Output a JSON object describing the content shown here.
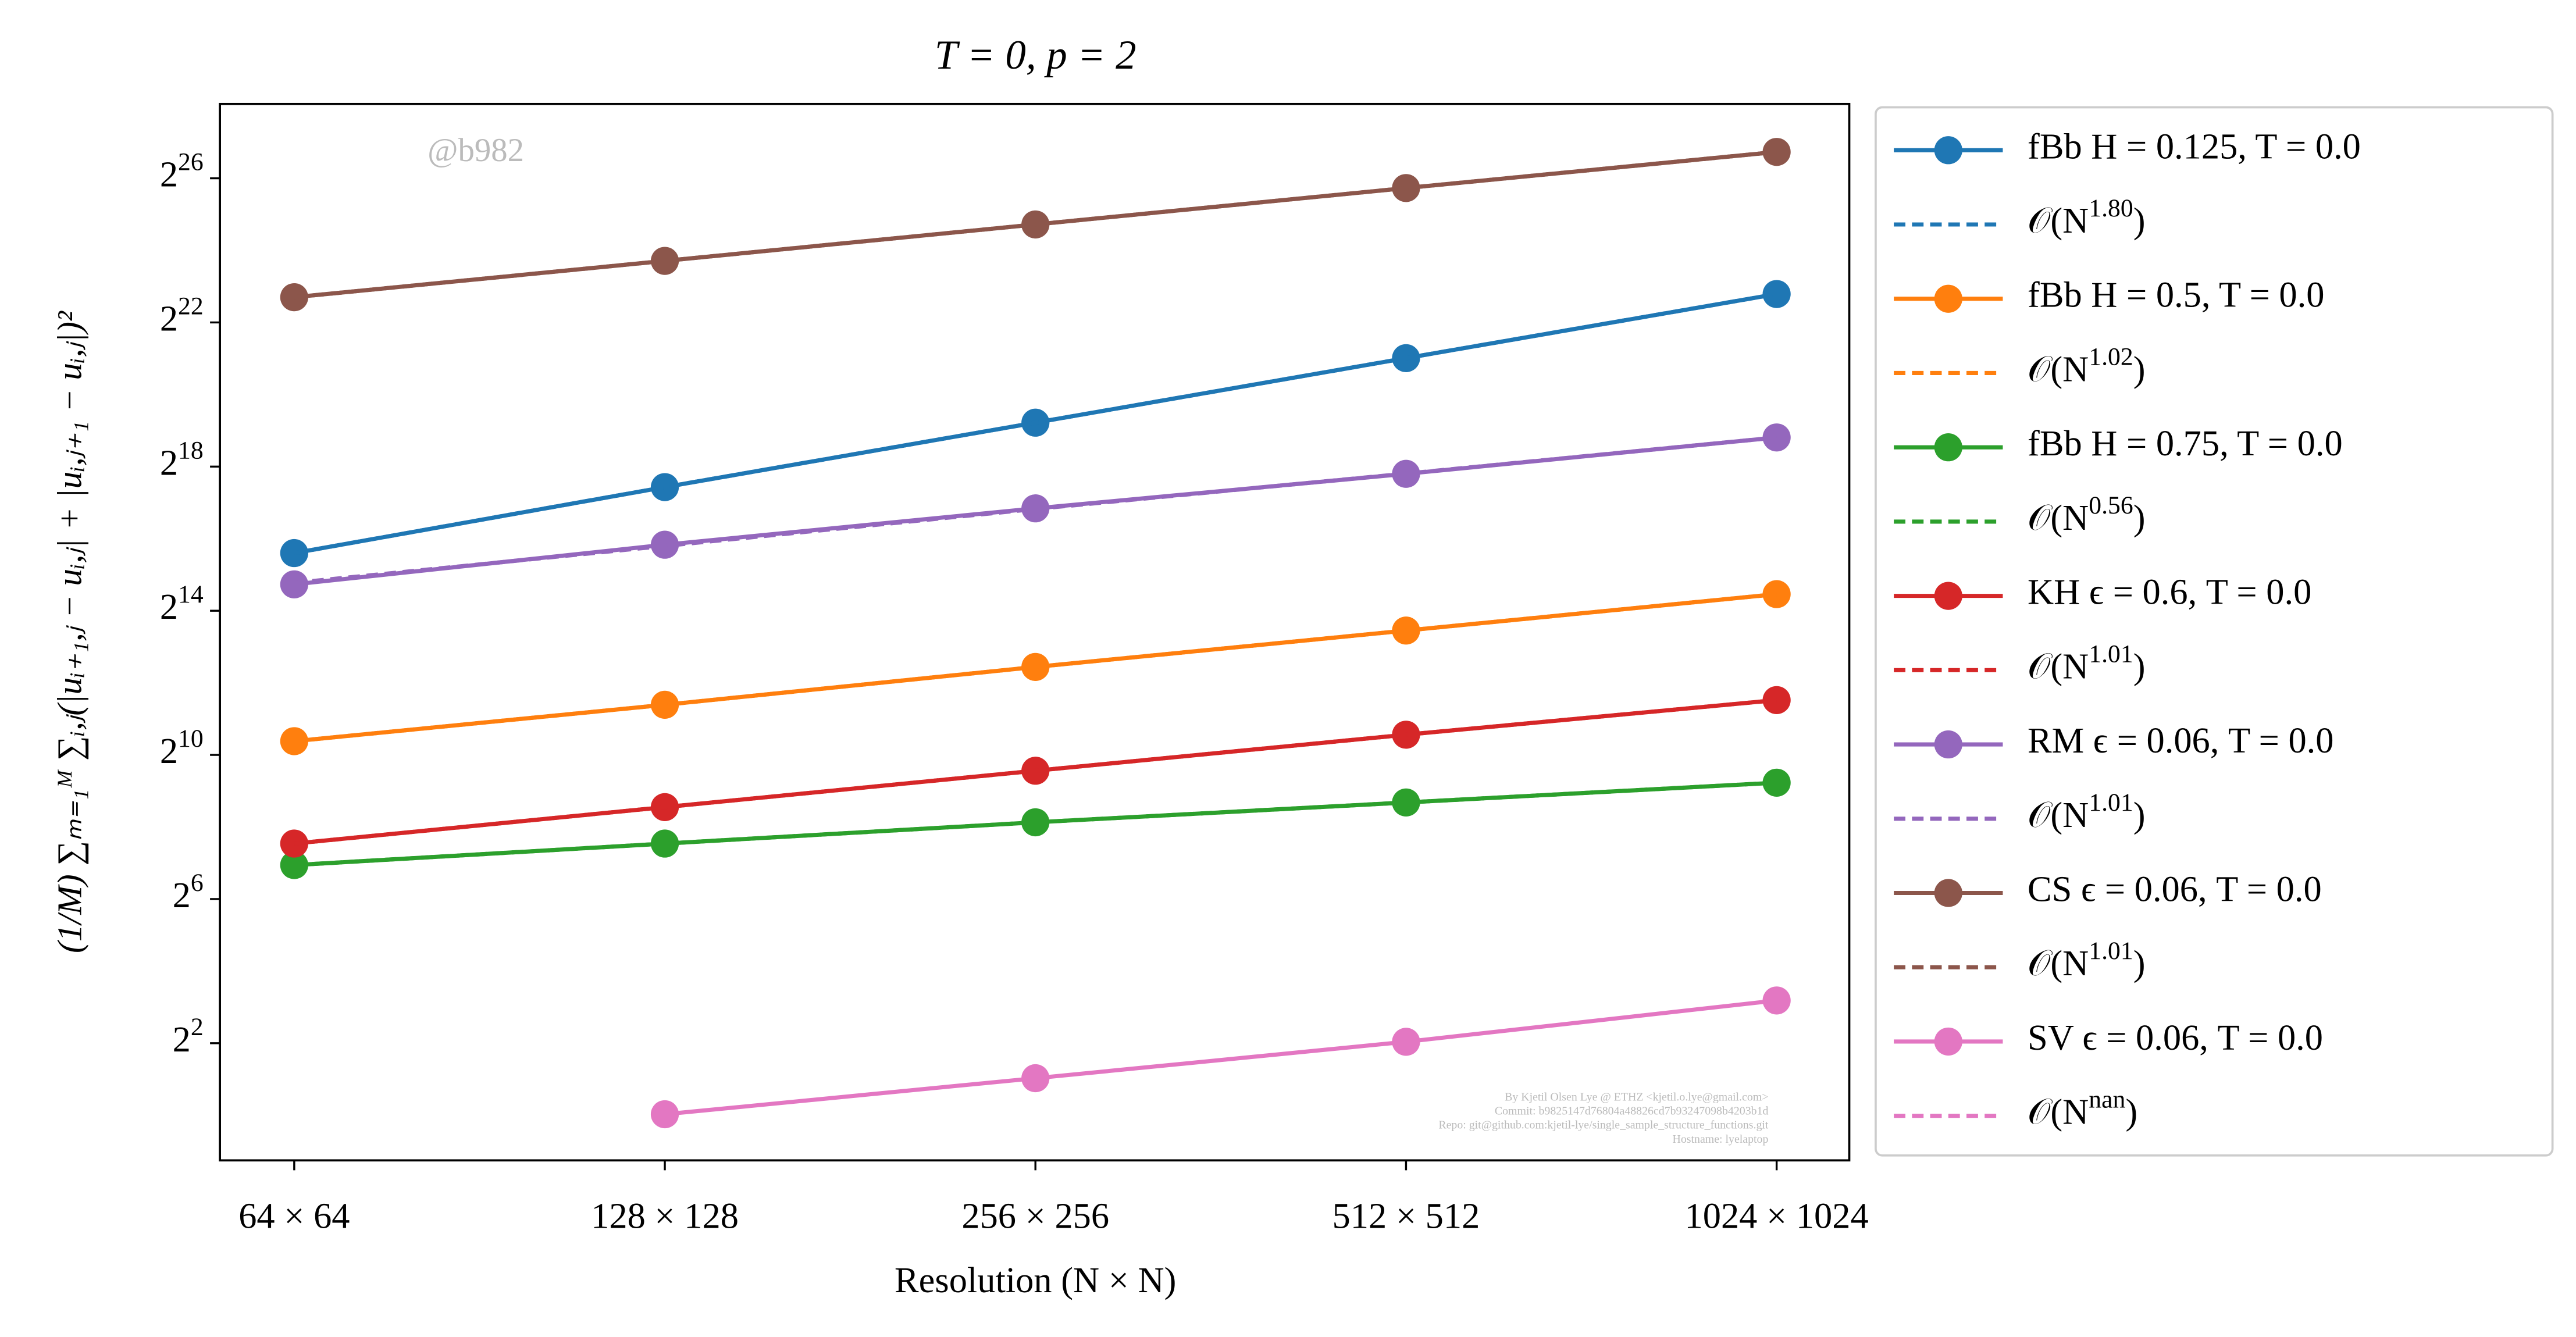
{
  "chart_data": {
    "type": "line",
    "title": "T = 0, p = 2",
    "xlabel": "Resolution (N × N)",
    "ylabel": "(1/M) ∑ₘ₌₁ᴹ ∑ᵢ,ⱼ(|uᵢ₊₁,ⱼ − uᵢ,ⱼ| + |uᵢ,ⱼ₊₁ − uᵢ,ⱼ|)²",
    "watermark": "@b982",
    "footnote": [
      "By Kjetil Olsen Lye @ ETHZ <kjetil.o.lye@gmail.com>",
      "Commit: b9825147d76804a48826cd7b93247098b4203b1d",
      "Repo: git@github.com:kjetil-lye/single_sample_structure_functions.git",
      "Hostname: lyelaptop"
    ],
    "categories": [
      "64 × 64",
      "128 × 128",
      "256 × 256",
      "512 × 512",
      "1024 × 1024"
    ],
    "yscale": "log",
    "log_base": 2,
    "ylim": [
      0.42,
      280000000
    ],
    "yticks": [
      {
        "value": 4,
        "label": "2^{2}"
      },
      {
        "value": 64,
        "label": "2^{6}"
      },
      {
        "value": 1024,
        "label": "2^{10}"
      },
      {
        "value": 16384,
        "label": "2^{14}"
      },
      {
        "value": 262144,
        "label": "2^{18}"
      },
      {
        "value": 4194304,
        "label": "2^{22}"
      },
      {
        "value": 67108864,
        "label": "2^{26}"
      }
    ],
    "grid": false,
    "legend": "outside-right",
    "series": [
      {
        "name": "fBb H = 0.125, T = 0.0",
        "color": "#1f77b4",
        "style": "solid",
        "values": [
          49650,
          176600,
          610000,
          2110000,
          7240000
        ]
      },
      {
        "name": "𝒪(N^{1.80})",
        "color": "#1f77b4",
        "style": "dashed",
        "values": [
          49650,
          176600,
          610000,
          2110000,
          7240000
        ]
      },
      {
        "name": "fBb H = 0.5, T = 0.0",
        "color": "#ff7f0e",
        "style": "solid",
        "values": [
          1333,
          2684,
          5557,
          11190,
          22540
        ]
      },
      {
        "name": "𝒪(N^{1.02})",
        "color": "#ff7f0e",
        "style": "dashed",
        "values": [
          1333,
          2684,
          5557,
          11190,
          22540
        ]
      },
      {
        "name": "fBb H = 0.75, T = 0.0",
        "color": "#2ca02c",
        "style": "solid",
        "values": [
          123,
          186,
          280,
          410,
          600
        ]
      },
      {
        "name": "𝒪(N^{0.56})",
        "color": "#2ca02c",
        "style": "dashed",
        "values": [
          123,
          186,
          280,
          410,
          600
        ]
      },
      {
        "name": "KH ϵ = 0.6, T = 0.0",
        "color": "#d62728",
        "style": "solid",
        "values": [
          186,
          375,
          755,
          1510,
          2937
        ]
      },
      {
        "name": "𝒪(N^{1.01})",
        "color": "#d62728",
        "style": "dashed",
        "values": [
          186,
          375,
          755,
          1510,
          2937
        ]
      },
      {
        "name": "RM ϵ = 0.06, T = 0.0",
        "color": "#9467bd",
        "style": "solid",
        "values": [
          27200,
          58300,
          117300,
          228000,
          459000
        ]
      },
      {
        "name": "𝒪(N^{1.01})",
        "color": "#9467bd",
        "style": "dashed",
        "values": [
          28000,
          57000,
          116000,
          229000,
          459000
        ]
      },
      {
        "name": "CS ϵ = 0.06, T = 0.0",
        "color": "#8c564b",
        "style": "solid",
        "values": [
          6810000,
          13700000,
          27600000,
          55600000,
          111400000
        ]
      },
      {
        "name": "𝒪(N^{1.01})",
        "color": "#8c564b",
        "style": "dashed",
        "values": [
          6810000,
          13700000,
          27600000,
          55600000,
          111400000
        ]
      },
      {
        "name": "SV ϵ = 0.06, T = 0.0",
        "color": "#e377c2",
        "style": "solid",
        "values": [
          null,
          1.02,
          2.04,
          4.11,
          9.1
        ]
      },
      {
        "name": "𝒪(N^{nan})",
        "color": "#e377c2",
        "style": "dashed",
        "values": [
          null,
          null,
          null,
          null,
          null
        ]
      }
    ]
  }
}
